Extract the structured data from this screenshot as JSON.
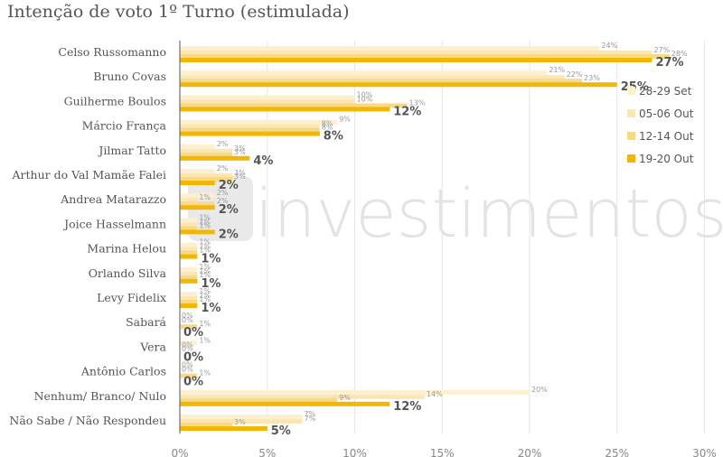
{
  "title": "Intenção de voto 1º Turno (estimulada)",
  "watermark": "investimentos",
  "chart_data": {
    "type": "bar",
    "orientation": "horizontal",
    "title": "Intenção de voto 1º Turno (estimulada)",
    "xlim": [
      0,
      30
    ],
    "xticks": [
      "0%",
      "5%",
      "10%",
      "15%",
      "20%",
      "25%",
      "30%"
    ],
    "grid": true,
    "legend_position": "right",
    "categories": [
      "Celso Russomanno",
      "Bruno Covas",
      "Guilherme Boulos",
      "Márcio França",
      "Jilmar Tatto",
      "Arthur do Val Mamãe Falei",
      "Andrea Matarazzo",
      "Joice Hasselmann",
      "Marina Helou",
      "Orlando Silva",
      "Levy Fidelix",
      "Sabará",
      "Vera",
      "Antônio Carlos",
      "Nenhum/ Branco/ Nulo",
      "Não Sabe / Não Respondeu"
    ],
    "series": [
      {
        "name": "28-29 Set",
        "color": "#fdf0d0",
        "values": [
          24,
          21,
          10,
          9,
          2,
          2,
          2,
          1,
          1,
          1,
          1,
          0,
          1,
          0,
          20,
          7
        ]
      },
      {
        "name": "05-06 Out",
        "color": "#fbe6b4",
        "values": [
          27,
          22,
          10,
          8,
          3,
          3,
          1,
          1,
          1,
          1,
          1,
          0,
          0,
          0,
          14,
          7
        ]
      },
      {
        "name": "12-14 Out",
        "color": "#f7d98a",
        "values": [
          28,
          23,
          13,
          8,
          3,
          3,
          2,
          1,
          1,
          1,
          1,
          1,
          0,
          1,
          9,
          3
        ]
      },
      {
        "name": "19-20 Out",
        "color": "#f2b705",
        "values": [
          27,
          25,
          12,
          8,
          4,
          2,
          2,
          2,
          1,
          1,
          1,
          0,
          0,
          0,
          12,
          5
        ]
      }
    ],
    "label_suffix": "%"
  }
}
